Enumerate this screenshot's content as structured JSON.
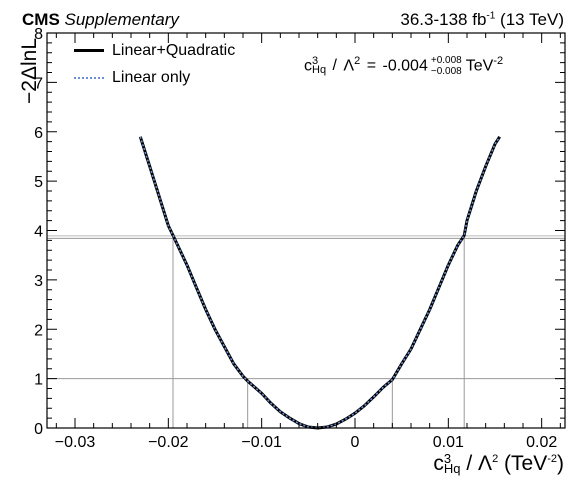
{
  "header": {
    "experiment": "CMS",
    "status": "Supplementary",
    "lumi_text": "36.3-138 fb",
    "lumi_sup": "-1",
    "energy_text": "(13 TeV)"
  },
  "legend": [
    {
      "label": "Linear+Quadratic",
      "color": "#000000",
      "style": "solid"
    },
    {
      "label": "Linear only",
      "color": "#6b8fd6",
      "style": "dotted"
    }
  ],
  "result": {
    "param": "c",
    "param_sup": "3",
    "param_sub": "Hq",
    "slash": "/",
    "lambda": "Λ",
    "lambda_sup": "2",
    "equals": "=",
    "value": "-0.004",
    "err_up": "+0.008",
    "err_down": "−0.008",
    "unit": "TeV",
    "unit_sup": "-2"
  },
  "axes": {
    "x_label": {
      "base": "c",
      "sup": "3",
      "sub": "Hq",
      "mid": " / Λ",
      "sup2": "2",
      "paren": " (TeV",
      "sup3": "-2",
      "close": ")"
    },
    "y_label": "−2ΔlnL"
  },
  "chart_data": {
    "type": "line",
    "xlim": [
      -0.033,
      0.0225
    ],
    "ylim": [
      0,
      8
    ],
    "x_ticks": [
      -0.03,
      -0.02,
      -0.01,
      0,
      0.01,
      0.02
    ],
    "x_tick_labels": [
      "−0.03",
      "−0.02",
      "−0.01",
      "0",
      "0.01",
      "0.02"
    ],
    "y_ticks": [
      0,
      1,
      2,
      3,
      4,
      5,
      6,
      7,
      8
    ],
    "y_tick_labels": [
      "0",
      "1",
      "2",
      "3",
      "4",
      "5",
      "6",
      "7",
      "8"
    ],
    "series": [
      {
        "name": "Linear+Quadratic",
        "color": "#000000",
        "x": [
          -0.023,
          -0.022,
          -0.021,
          -0.02,
          -0.0195,
          -0.018,
          -0.017,
          -0.016,
          -0.015,
          -0.014,
          -0.013,
          -0.012,
          -0.0115,
          -0.01,
          -0.009,
          -0.008,
          -0.007,
          -0.006,
          -0.005,
          -0.004,
          -0.003,
          -0.002,
          -0.001,
          0.0,
          0.001,
          0.002,
          0.003,
          0.004,
          0.005,
          0.006,
          0.007,
          0.008,
          0.009,
          0.01,
          0.011,
          0.0117,
          0.012,
          0.013,
          0.014,
          0.015,
          0.0155
        ],
        "y": [
          5.9,
          5.3,
          4.7,
          4.1,
          3.9,
          3.3,
          2.85,
          2.4,
          2.0,
          1.65,
          1.3,
          1.05,
          0.95,
          0.7,
          0.5,
          0.33,
          0.2,
          0.09,
          0.02,
          0.0,
          0.02,
          0.08,
          0.18,
          0.3,
          0.45,
          0.63,
          0.82,
          0.98,
          1.3,
          1.6,
          2.0,
          2.4,
          2.85,
          3.3,
          3.7,
          3.9,
          4.2,
          4.8,
          5.3,
          5.75,
          5.9
        ]
      },
      {
        "name": "Linear only",
        "color": "#6b8fd6",
        "x": [
          -0.023,
          -0.022,
          -0.021,
          -0.02,
          -0.0195,
          -0.018,
          -0.017,
          -0.016,
          -0.015,
          -0.014,
          -0.013,
          -0.012,
          -0.0115,
          -0.01,
          -0.009,
          -0.008,
          -0.007,
          -0.006,
          -0.005,
          -0.004,
          -0.003,
          -0.002,
          -0.001,
          0.0,
          0.001,
          0.002,
          0.003,
          0.004,
          0.005,
          0.006,
          0.007,
          0.008,
          0.009,
          0.01,
          0.011,
          0.0117,
          0.012,
          0.013,
          0.014,
          0.015,
          0.0155
        ],
        "y": [
          5.9,
          5.3,
          4.7,
          4.1,
          3.9,
          3.3,
          2.85,
          2.4,
          2.0,
          1.65,
          1.3,
          1.05,
          0.95,
          0.7,
          0.5,
          0.33,
          0.2,
          0.09,
          0.02,
          0.0,
          0.02,
          0.08,
          0.18,
          0.3,
          0.45,
          0.63,
          0.82,
          0.98,
          1.3,
          1.6,
          2.0,
          2.4,
          2.85,
          3.3,
          3.7,
          3.9,
          4.2,
          4.8,
          5.3,
          5.75,
          5.9
        ]
      }
    ],
    "reference_lines": [
      {
        "axis": "y",
        "value": 1.0,
        "color": "#999999"
      },
      {
        "axis": "y",
        "value": 3.84,
        "color": "#999999"
      },
      {
        "axis": "y",
        "value": 3.89,
        "color": "#bbbbbb"
      }
    ],
    "crossing_lines": [
      {
        "x": -0.0195,
        "y": 3.9
      },
      {
        "x": -0.0115,
        "y": 1.0
      },
      {
        "x": 0.004,
        "y": 1.0
      },
      {
        "x": 0.0117,
        "y": 3.9
      }
    ],
    "grid": false,
    "legend_position": "top-left"
  }
}
